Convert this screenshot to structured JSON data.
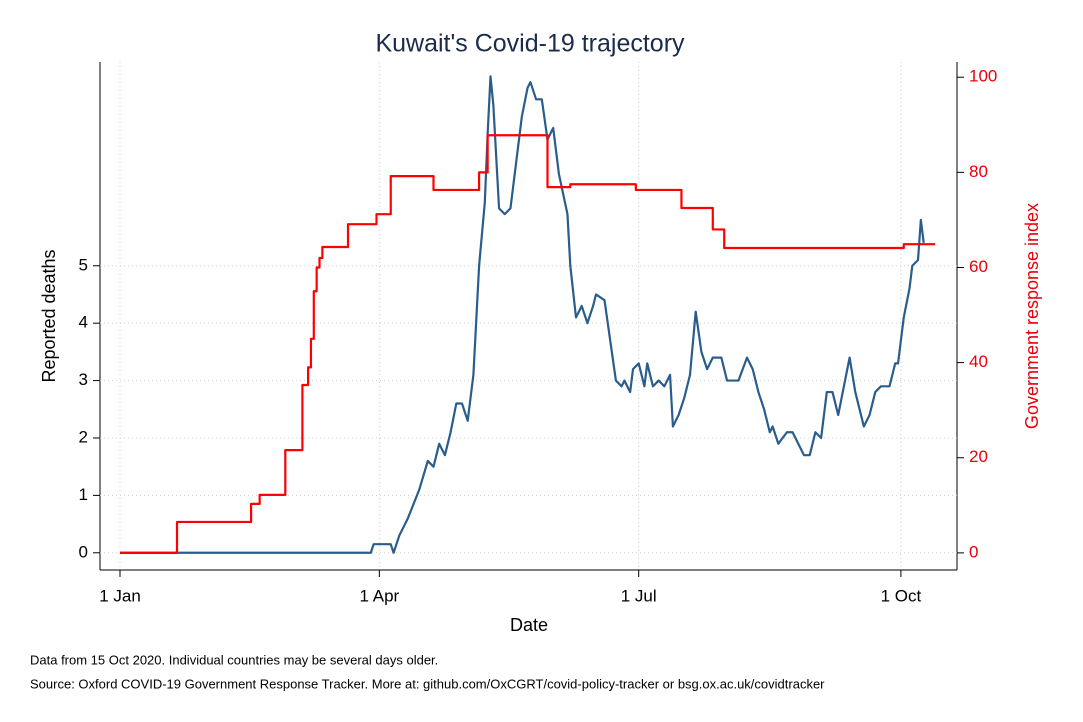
{
  "chart_data": {
    "type": "line",
    "title": "Kuwait's Covid-19 trajectory",
    "xlabel": "Date",
    "ylabel": "Reported deaths",
    "y2label": "Government response index",
    "notes": [
      "Data from 15 Oct 2020. Individual countries may be several days older.",
      "Source: Oxford COVID-19 Government Response Tracker. More at: github.com/OxCGRT/covid-policy-tracker or bsg.ox.ac.uk/covidtracker"
    ],
    "xticks": [
      "1 Jan",
      "1 Apr",
      "1 Jul",
      "1 Oct"
    ],
    "ylim": [
      -0.3,
      8.55
    ],
    "yticks": [
      0,
      1,
      2,
      3,
      4,
      5
    ],
    "y2lim": [
      -3.6,
      103.2
    ],
    "y2ticks": [
      0,
      20,
      40,
      60,
      80,
      100
    ],
    "grid": true,
    "series": [
      {
        "color": "#2a5d8c",
        "step": false,
        "x": [
          "1 Jan",
          "29 Mar",
          "30 Mar",
          "5 Apr",
          "6 Apr",
          "8 Apr",
          "11 Apr",
          "15 Apr",
          "18 Apr",
          "20 Apr",
          "22 Apr",
          "24 Apr",
          "26 Apr",
          "28 Apr",
          "30 Apr",
          "2 May",
          "4 May",
          "6 May",
          "8 May",
          "9 May",
          "10 May",
          "11 May",
          "13 May",
          "15 May",
          "17 May",
          "19 May",
          "21 May",
          "23 May",
          "24 May",
          "26 May",
          "28 May",
          "30 May",
          "1 Jun",
          "3 Jun",
          "6 Jun",
          "7 Jun",
          "9 Jun",
          "11 Jun",
          "13 Jun",
          "15 Jun",
          "16 Jun",
          "19 Jun",
          "21 Jun",
          "23 Jun",
          "25 Jun",
          "26 Jun",
          "28 Jun",
          "29 Jun",
          "1 Jul",
          "3 Jul",
          "4 Jul",
          "6 Jul",
          "8 Jul",
          "10 Jul",
          "12 Jul",
          "13 Jul",
          "15 Jul",
          "17 Jul",
          "19 Jul",
          "21 Jul",
          "23 Jul",
          "25 Jul",
          "27 Jul",
          "30 Jul",
          "1 Aug",
          "5 Aug",
          "8 Aug",
          "10 Aug",
          "12 Aug",
          "14 Aug",
          "16 Aug",
          "17 Aug",
          "19 Aug",
          "22 Aug",
          "24 Aug",
          "26 Aug",
          "28 Aug",
          "30 Aug",
          "1 Sep",
          "3 Sep",
          "5 Sep",
          "7 Sep",
          "9 Sep",
          "11 Sep",
          "13 Sep",
          "15 Sep",
          "18 Sep",
          "20 Sep",
          "22 Sep",
          "24 Sep",
          "27 Sep",
          "29 Sep",
          "30 Sep",
          "2 Oct",
          "4 Oct",
          "5 Oct",
          "7 Oct",
          "8 Oct",
          "9 Oct"
        ],
        "values": [
          0,
          0,
          0.15,
          0.15,
          0,
          0.3,
          0.6,
          1.1,
          1.6,
          1.5,
          1.9,
          1.7,
          2.1,
          2.6,
          2.6,
          2.3,
          3.1,
          5.0,
          6.1,
          7.3,
          8.3,
          7.8,
          6.0,
          5.9,
          6.0,
          6.8,
          7.6,
          8.1,
          8.2,
          7.9,
          7.9,
          7.2,
          7.4,
          6.6,
          5.9,
          5.0,
          4.1,
          4.3,
          4.0,
          4.3,
          4.5,
          4.4,
          3.7,
          3.0,
          2.9,
          3.0,
          2.8,
          3.2,
          3.3,
          2.9,
          3.3,
          2.9,
          3.0,
          2.9,
          3.1,
          2.2,
          2.4,
          2.7,
          3.1,
          4.2,
          3.5,
          3.2,
          3.4,
          3.4,
          3.0,
          3.0,
          3.4,
          3.2,
          2.8,
          2.5,
          2.1,
          2.2,
          1.9,
          2.1,
          2.1,
          1.9,
          1.7,
          1.7,
          2.1,
          2.0,
          2.8,
          2.8,
          2.4,
          2.9,
          3.4,
          2.8,
          2.2,
          2.4,
          2.8,
          2.9,
          2.9,
          3.3,
          3.3,
          4.1,
          4.6,
          5.0,
          5.1,
          5.8,
          5.4
        ]
      },
      {
        "color": "#ff0000",
        "axis": "y2",
        "step": true,
        "x": [
          "1 Jan",
          "21 Jan",
          "16 Feb",
          "19 Feb",
          "28 Feb",
          "5 Mar",
          "7 Mar",
          "8 Mar",
          "9 Mar",
          "10 Mar",
          "11 Mar",
          "12 Mar",
          "21 Mar",
          "31 Mar",
          "5 Apr",
          "20 Apr",
          "6 May",
          "9 May",
          "30 May",
          "7 Jun",
          "30 Jun",
          "16 Jul",
          "27 Jul",
          "31 Jul",
          "2 Oct",
          "13 Oct"
        ],
        "values": [
          0,
          6.5,
          10.3,
          12.2,
          21.6,
          35.3,
          39,
          45,
          55,
          60,
          62,
          64.3,
          69.1,
          71.2,
          79.2,
          76.3,
          80,
          87.8,
          76.9,
          77.5,
          76.3,
          72.5,
          68,
          64.1,
          64.9,
          64.9
        ]
      }
    ]
  }
}
